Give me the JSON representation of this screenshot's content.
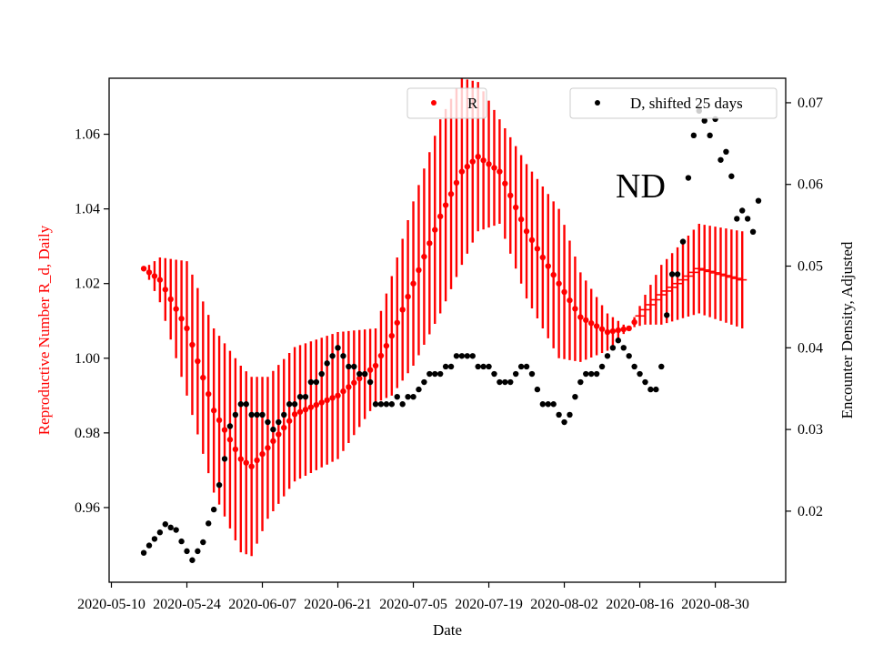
{
  "chart_data": {
    "type": "scatter",
    "annotation": "ND",
    "xlabel": "Date",
    "ylabel_left": "Reproductive Number R_d, Daily",
    "ylabel_right": "Encounter Density, Adjusted",
    "x_ticks": [
      "2020-05-10",
      "2020-05-24",
      "2020-06-07",
      "2020-06-21",
      "2020-07-05",
      "2020-07-19",
      "2020-08-02",
      "2020-08-16",
      "2020-08-30"
    ],
    "ylim_left": [
      0.94,
      1.075
    ],
    "yticks_left": [
      "0.96",
      "0.98",
      "1.00",
      "1.02",
      "1.04",
      "1.06"
    ],
    "ylim_right": [
      0.0113,
      0.073
    ],
    "yticks_right": [
      "0.02",
      "0.03",
      "0.04",
      "0.05",
      "0.06",
      "0.07"
    ],
    "legend_left": {
      "label": "R",
      "position": "top-center"
    },
    "legend_right": {
      "label": "D, shifted 25 days",
      "position": "top-right"
    },
    "colors": {
      "r_series": "#ff0000",
      "d_series": "#000000",
      "left_axis": "#ff0000"
    },
    "grid": false,
    "series": [
      {
        "name": "R",
        "axis": "left",
        "x_start": "2020-05-16",
        "x_end": "2020-09-04",
        "estimated_dense_daily": true,
        "key_points": [
          [
            "2020-05-16",
            1.024,
            0.0
          ],
          [
            "2020-05-19",
            1.021,
            0.006
          ],
          [
            "2020-05-24",
            1.008,
            0.018
          ],
          [
            "2020-05-29",
            0.986,
            0.022
          ],
          [
            "2020-06-03",
            0.973,
            0.025
          ],
          [
            "2020-06-05",
            0.971,
            0.024
          ],
          [
            "2020-06-08",
            0.976,
            0.019
          ],
          [
            "2020-06-13",
            0.985,
            0.018
          ],
          [
            "2020-06-21",
            0.99,
            0.017
          ],
          [
            "2020-06-28",
            0.998,
            0.01
          ],
          [
            "2020-07-01",
            1.006,
            0.016
          ],
          [
            "2020-07-05",
            1.02,
            0.022
          ],
          [
            "2020-07-10",
            1.038,
            0.026
          ],
          [
            "2020-07-14",
            1.05,
            0.025
          ],
          [
            "2020-07-17",
            1.054,
            0.02
          ],
          [
            "2020-07-21",
            1.05,
            0.014
          ],
          [
            "2020-07-26",
            1.034,
            0.018
          ],
          [
            "2020-08-01",
            1.02,
            0.02
          ],
          [
            "2020-08-05",
            1.011,
            0.012
          ],
          [
            "2020-08-10",
            1.007,
            0.005
          ],
          [
            "2020-08-14",
            1.008,
            0.0
          ],
          [
            "2020-08-17",
            1.013,
            0.004
          ],
          [
            "2020-08-20",
            1.017,
            0.008
          ],
          [
            "2020-08-27",
            1.024,
            0.012
          ],
          [
            "2020-09-04",
            1.021,
            0.013
          ]
        ]
      },
      {
        "name": "D, shifted 25 days",
        "axis": "right",
        "points": [
          [
            "2020-05-16",
            0.0149
          ],
          [
            "2020-05-17",
            0.0158
          ],
          [
            "2020-05-18",
            0.0166
          ],
          [
            "2020-05-19",
            0.0174
          ],
          [
            "2020-05-20",
            0.0184
          ],
          [
            "2020-05-21",
            0.018
          ],
          [
            "2020-05-22",
            0.0177
          ],
          [
            "2020-05-23",
            0.0163
          ],
          [
            "2020-05-24",
            0.0151
          ],
          [
            "2020-05-25",
            0.014
          ],
          [
            "2020-05-26",
            0.0151
          ],
          [
            "2020-05-27",
            0.0162
          ],
          [
            "2020-05-28",
            0.0185
          ],
          [
            "2020-05-29",
            0.0202
          ],
          [
            "2020-05-30",
            0.0232
          ],
          [
            "2020-05-31",
            0.0264
          ],
          [
            "2020-06-01",
            0.0304
          ],
          [
            "2020-06-02",
            0.0318
          ],
          [
            "2020-06-03",
            0.0331
          ],
          [
            "2020-06-04",
            0.0331
          ],
          [
            "2020-06-05",
            0.0318
          ],
          [
            "2020-06-06",
            0.0318
          ],
          [
            "2020-06-07",
            0.0318
          ],
          [
            "2020-06-08",
            0.0309
          ],
          [
            "2020-06-09",
            0.03
          ],
          [
            "2020-06-10",
            0.0309
          ],
          [
            "2020-06-11",
            0.0318
          ],
          [
            "2020-06-12",
            0.0331
          ],
          [
            "2020-06-13",
            0.0331
          ],
          [
            "2020-06-14",
            0.034
          ],
          [
            "2020-06-15",
            0.034
          ],
          [
            "2020-06-16",
            0.0358
          ],
          [
            "2020-06-17",
            0.0358
          ],
          [
            "2020-06-18",
            0.0368
          ],
          [
            "2020-06-19",
            0.0381
          ],
          [
            "2020-06-20",
            0.039
          ],
          [
            "2020-06-21",
            0.04
          ],
          [
            "2020-06-22",
            0.039
          ],
          [
            "2020-06-23",
            0.0377
          ],
          [
            "2020-06-24",
            0.0377
          ],
          [
            "2020-06-25",
            0.0368
          ],
          [
            "2020-06-26",
            0.0368
          ],
          [
            "2020-06-27",
            0.0358
          ],
          [
            "2020-06-28",
            0.0331
          ],
          [
            "2020-06-29",
            0.0331
          ],
          [
            "2020-06-30",
            0.0331
          ],
          [
            "2020-07-01",
            0.0331
          ],
          [
            "2020-07-02",
            0.034
          ],
          [
            "2020-07-03",
            0.0331
          ],
          [
            "2020-07-04",
            0.034
          ],
          [
            "2020-07-05",
            0.034
          ],
          [
            "2020-07-06",
            0.0349
          ],
          [
            "2020-07-07",
            0.0358
          ],
          [
            "2020-07-08",
            0.0368
          ],
          [
            "2020-07-09",
            0.0368
          ],
          [
            "2020-07-10",
            0.0368
          ],
          [
            "2020-07-11",
            0.0377
          ],
          [
            "2020-07-12",
            0.0377
          ],
          [
            "2020-07-13",
            0.039
          ],
          [
            "2020-07-14",
            0.039
          ],
          [
            "2020-07-15",
            0.039
          ],
          [
            "2020-07-16",
            0.039
          ],
          [
            "2020-07-17",
            0.0377
          ],
          [
            "2020-07-18",
            0.0377
          ],
          [
            "2020-07-19",
            0.0377
          ],
          [
            "2020-07-20",
            0.0368
          ],
          [
            "2020-07-21",
            0.0358
          ],
          [
            "2020-07-22",
            0.0358
          ],
          [
            "2020-07-23",
            0.0358
          ],
          [
            "2020-07-24",
            0.0368
          ],
          [
            "2020-07-25",
            0.0377
          ],
          [
            "2020-07-26",
            0.0377
          ],
          [
            "2020-07-27",
            0.0368
          ],
          [
            "2020-07-28",
            0.0349
          ],
          [
            "2020-07-29",
            0.0331
          ],
          [
            "2020-07-30",
            0.0331
          ],
          [
            "2020-07-31",
            0.0331
          ],
          [
            "2020-08-01",
            0.0318
          ],
          [
            "2020-08-02",
            0.0309
          ],
          [
            "2020-08-03",
            0.0318
          ],
          [
            "2020-08-04",
            0.034
          ],
          [
            "2020-08-05",
            0.0358
          ],
          [
            "2020-08-06",
            0.0368
          ],
          [
            "2020-08-07",
            0.0368
          ],
          [
            "2020-08-08",
            0.0368
          ],
          [
            "2020-08-09",
            0.0377
          ],
          [
            "2020-08-10",
            0.039
          ],
          [
            "2020-08-11",
            0.04
          ],
          [
            "2020-08-12",
            0.0409
          ],
          [
            "2020-08-13",
            0.04
          ],
          [
            "2020-08-14",
            0.039
          ],
          [
            "2020-08-15",
            0.0377
          ],
          [
            "2020-08-16",
            0.0368
          ],
          [
            "2020-08-17",
            0.0358
          ],
          [
            "2020-08-18",
            0.0349
          ],
          [
            "2020-08-19",
            0.0349
          ],
          [
            "2020-08-20",
            0.0377
          ],
          [
            "2020-08-21",
            0.044
          ],
          [
            "2020-08-22",
            0.049
          ],
          [
            "2020-08-23",
            0.049
          ],
          [
            "2020-08-24",
            0.053
          ],
          [
            "2020-08-25",
            0.0608
          ],
          [
            "2020-08-26",
            0.066
          ],
          [
            "2020-08-27",
            0.069
          ],
          [
            "2020-08-28",
            0.0678
          ],
          [
            "2020-08-29",
            0.066
          ],
          [
            "2020-08-30",
            0.068
          ],
          [
            "2020-08-31",
            0.063
          ],
          [
            "2020-09-01",
            0.064
          ],
          [
            "2020-09-02",
            0.061
          ],
          [
            "2020-09-03",
            0.0558
          ],
          [
            "2020-09-04",
            0.0568
          ],
          [
            "2020-09-05",
            0.0558
          ],
          [
            "2020-09-06",
            0.0542
          ],
          [
            "2020-09-07",
            0.058
          ]
        ]
      }
    ]
  }
}
